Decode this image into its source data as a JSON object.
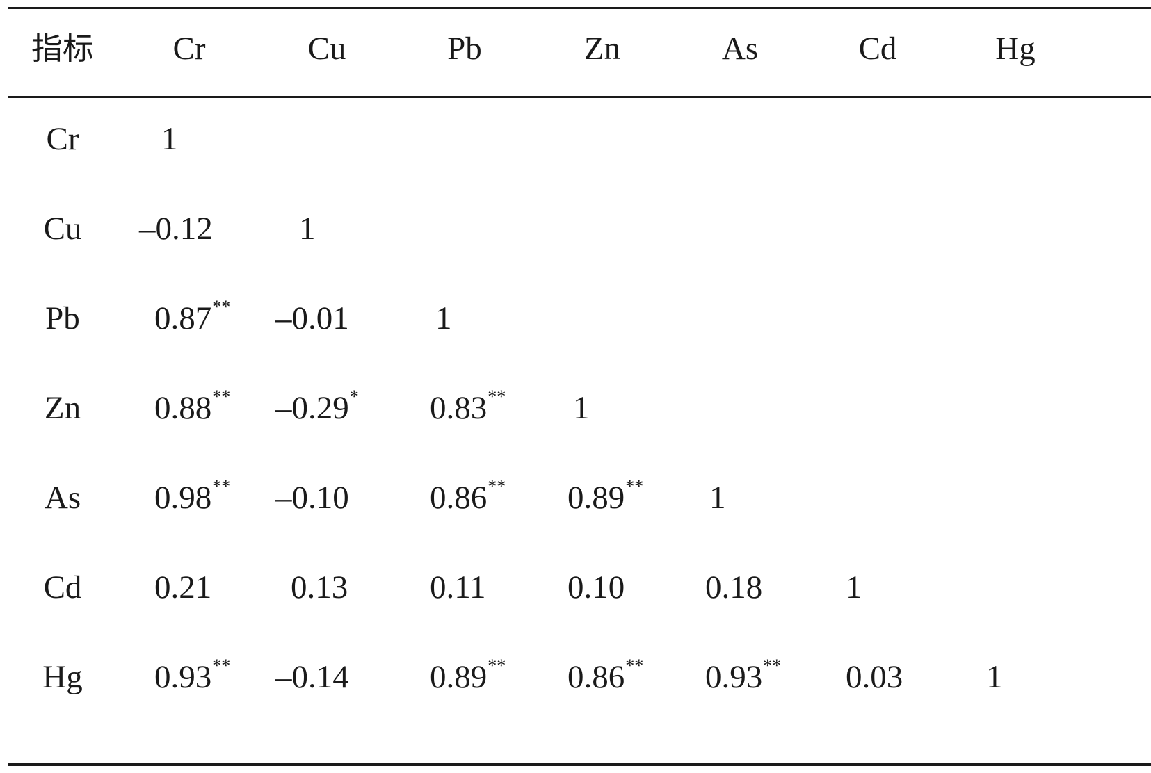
{
  "table": {
    "headers": [
      "指标",
      "Cr",
      "Cu",
      "Pb",
      "Zn",
      "As",
      "Cd",
      "Hg"
    ],
    "rows": [
      {
        "label": "Cr",
        "cells": [
          {
            "v": "1",
            "s": ""
          }
        ]
      },
      {
        "label": "Cu",
        "cells": [
          {
            "v": "–0.12",
            "s": ""
          },
          {
            "v": "1",
            "s": ""
          }
        ]
      },
      {
        "label": "Pb",
        "cells": [
          {
            "v": "0.87",
            "s": "**"
          },
          {
            "v": "–0.01",
            "s": ""
          },
          {
            "v": "1",
            "s": ""
          }
        ]
      },
      {
        "label": "Zn",
        "cells": [
          {
            "v": "0.88",
            "s": "**"
          },
          {
            "v": "–0.29",
            "s": "*"
          },
          {
            "v": "0.83",
            "s": "**"
          },
          {
            "v": "1",
            "s": ""
          }
        ]
      },
      {
        "label": "As",
        "cells": [
          {
            "v": "0.98",
            "s": "**"
          },
          {
            "v": "–0.10",
            "s": ""
          },
          {
            "v": "0.86",
            "s": "**"
          },
          {
            "v": "0.89",
            "s": "**"
          },
          {
            "v": "1",
            "s": ""
          }
        ]
      },
      {
        "label": "Cd",
        "cells": [
          {
            "v": "0.21",
            "s": ""
          },
          {
            "v": "0.13",
            "s": ""
          },
          {
            "v": "0.11",
            "s": ""
          },
          {
            "v": "0.10",
            "s": ""
          },
          {
            "v": "0.18",
            "s": ""
          },
          {
            "v": "1",
            "s": ""
          }
        ]
      },
      {
        "label": "Hg",
        "cells": [
          {
            "v": "0.93",
            "s": "**"
          },
          {
            "v": "–0.14",
            "s": ""
          },
          {
            "v": "0.89",
            "s": "**"
          },
          {
            "v": "0.86",
            "s": "**"
          },
          {
            "v": "0.93",
            "s": "**"
          },
          {
            "v": "0.03",
            "s": ""
          },
          {
            "v": "1",
            "s": ""
          }
        ]
      }
    ]
  }
}
